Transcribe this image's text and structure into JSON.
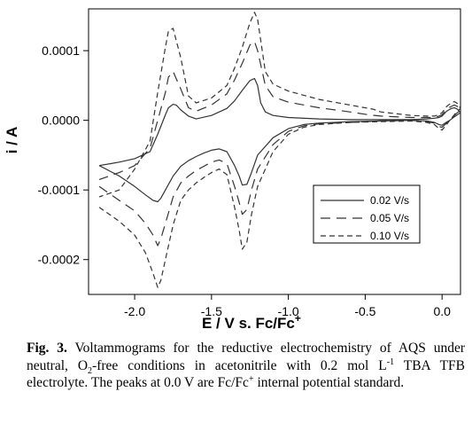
{
  "chart_data": {
    "type": "line",
    "xlabel": "E / V s. Fc/Fc",
    "xlabel_sup": "+",
    "ylabel": "i / A",
    "xlim": [
      -2.3,
      0.12
    ],
    "ylim": [
      -0.00025,
      0.00016
    ],
    "x_ticks": [
      {
        "value": -2.0,
        "label": "-2.0"
      },
      {
        "value": -1.5,
        "label": "-1.5"
      },
      {
        "value": -1.0,
        "label": "-1.0"
      },
      {
        "value": -0.5,
        "label": "-0.5"
      },
      {
        "value": 0.0,
        "label": "0.0"
      }
    ],
    "y_ticks": [
      {
        "value": 0.0001,
        "label": "0.0001"
      },
      {
        "value": 0.0,
        "label": "0.0000"
      },
      {
        "value": -0.0001,
        "label": "-0.0001"
      },
      {
        "value": -0.0002,
        "label": "-0.0002"
      }
    ],
    "legend_position": "lower-right",
    "series": [
      {
        "name": "0.02 V/s",
        "dash": "",
        "width": 1.2,
        "x": [
          -2.23,
          -2.1,
          -2.0,
          -1.93,
          -1.88,
          -1.85,
          -1.83,
          -1.8,
          -1.75,
          -1.7,
          -1.65,
          -1.6,
          -1.55,
          -1.5,
          -1.45,
          -1.4,
          -1.35,
          -1.32,
          -1.3,
          -1.27,
          -1.24,
          -1.2,
          -1.1,
          -1.0,
          -0.9,
          -0.8,
          -0.6,
          -0.4,
          -0.2,
          -0.1,
          -0.05,
          -0.02,
          0.0,
          0.02,
          0.05,
          0.08,
          0.1,
          0.12,
          0.1,
          0.08,
          0.06,
          0.03,
          0.0,
          -0.02,
          -0.05,
          -0.1,
          -0.2,
          -0.4,
          -0.6,
          -0.8,
          -1.0,
          -1.1,
          -1.15,
          -1.18,
          -1.2,
          -1.22,
          -1.25,
          -1.3,
          -1.35,
          -1.4,
          -1.5,
          -1.6,
          -1.65,
          -1.7,
          -1.73,
          -1.75,
          -1.78,
          -1.8,
          -1.85,
          -1.9,
          -2.0,
          -2.1,
          -2.23
        ],
        "y": [
          -6.5e-05,
          -8e-05,
          -9.5e-05,
          -0.000107,
          -0.000115,
          -0.000117,
          -0.000112,
          -0.0001,
          -8e-05,
          -6.6e-05,
          -5.8e-05,
          -5.2e-05,
          -4.7e-05,
          -4.3e-05,
          -4.1e-05,
          -4.5e-05,
          -6.5e-05,
          -8e-05,
          -9.3e-05,
          -9.2e-05,
          -7.5e-05,
          -5e-05,
          -2.5e-05,
          -1.2e-05,
          -6e-06,
          -4e-06,
          -2e-06,
          -1e-06,
          0.0,
          -1e-06,
          -3e-06,
          -6e-06,
          -7e-06,
          -4e-06,
          0.0,
          5e-06,
          8e-06,
          1.1e-05,
          1.6e-05,
          1.8e-05,
          1.7e-05,
          1.3e-05,
          6e-06,
          4e-06,
          3e-06,
          2e-06,
          1e-06,
          1e-06,
          1e-06,
          2e-06,
          4e-06,
          7e-06,
          1.2e-05,
          2.5e-05,
          5e-05,
          6e-05,
          5.7e-05,
          4.3e-05,
          2.8e-05,
          1.7e-05,
          7e-06,
          2e-06,
          6e-06,
          1.5e-05,
          2.2e-05,
          2.3e-05,
          1.8e-05,
          8e-06,
          -2e-05,
          -4.5e-05,
          -5.5e-05,
          -6e-05,
          -6.5e-05
        ]
      },
      {
        "name": "0.05 V/s",
        "dash": "11,7",
        "width": 1.2,
        "x": [
          -2.23,
          -2.1,
          -2.0,
          -1.93,
          -1.88,
          -1.85,
          -1.83,
          -1.8,
          -1.75,
          -1.7,
          -1.65,
          -1.6,
          -1.55,
          -1.5,
          -1.45,
          -1.4,
          -1.35,
          -1.32,
          -1.3,
          -1.27,
          -1.24,
          -1.2,
          -1.1,
          -1.0,
          -0.9,
          -0.8,
          -0.6,
          -0.4,
          -0.2,
          -0.1,
          -0.05,
          -0.02,
          0.0,
          0.02,
          0.05,
          0.08,
          0.1,
          0.12,
          0.1,
          0.08,
          0.06,
          0.03,
          0.0,
          -0.02,
          -0.05,
          -0.1,
          -0.2,
          -0.4,
          -0.48,
          -0.6,
          -0.8,
          -1.0,
          -1.1,
          -1.15,
          -1.18,
          -1.2,
          -1.22,
          -1.25,
          -1.3,
          -1.35,
          -1.4,
          -1.5,
          -1.6,
          -1.65,
          -1.7,
          -1.73,
          -1.75,
          -1.78,
          -1.8,
          -1.85,
          -1.9,
          -2.0,
          -2.1,
          -2.23
        ],
        "y": [
          -9.5e-05,
          -0.000115,
          -0.00013,
          -0.000148,
          -0.000165,
          -0.00018,
          -0.00017,
          -0.000148,
          -0.00011,
          -9e-05,
          -8e-05,
          -7.2e-05,
          -6.6e-05,
          -6e-05,
          -5.7e-05,
          -6.2e-05,
          -9.5e-05,
          -0.000118,
          -0.000135,
          -0.000128,
          -0.0001,
          -7e-05,
          -3.5e-05,
          -1.6e-05,
          -8e-06,
          -5e-06,
          -3e-06,
          -1e-06,
          0.0,
          -2e-06,
          -4e-06,
          -9e-06,
          -1e-05,
          -6e-06,
          0.0,
          7e-06,
          1.1e-05,
          1.4e-05,
          2e-05,
          2.2e-05,
          2e-05,
          1.6e-05,
          8e-06,
          6e-06,
          4e-06,
          4e-06,
          4e-06,
          6e-06,
          8e-06,
          1.2e-05,
          1.8e-05,
          2.6e-05,
          3.4e-05,
          5e-05,
          8e-05,
          0.0001,
          0.000113,
          0.000108,
          8.2e-05,
          5.8e-05,
          3.8e-05,
          2.2e-05,
          1.3e-05,
          1.8e-05,
          4.5e-05,
          6e-05,
          7e-05,
          6.2e-05,
          4e-05,
          0.0,
          -4e-05,
          -6.5e-05,
          -7.5e-05,
          -8.5e-05
        ]
      },
      {
        "name": "0.10 V/s",
        "dash": "6,4",
        "width": 1.2,
        "x": [
          -2.23,
          -2.1,
          -2.0,
          -1.93,
          -1.88,
          -1.85,
          -1.83,
          -1.8,
          -1.75,
          -1.7,
          -1.65,
          -1.6,
          -1.55,
          -1.5,
          -1.45,
          -1.4,
          -1.35,
          -1.32,
          -1.3,
          -1.27,
          -1.24,
          -1.2,
          -1.1,
          -1.0,
          -0.9,
          -0.8,
          -0.6,
          -0.4,
          -0.2,
          -0.1,
          -0.05,
          -0.02,
          0.0,
          0.02,
          0.05,
          0.08,
          0.1,
          0.12,
          0.1,
          0.08,
          0.06,
          0.03,
          0.0,
          -0.02,
          -0.05,
          -0.1,
          -0.2,
          -0.4,
          -0.45,
          -0.6,
          -0.8,
          -1.0,
          -1.1,
          -1.15,
          -1.18,
          -1.2,
          -1.22,
          -1.25,
          -1.3,
          -1.35,
          -1.4,
          -1.5,
          -1.6,
          -1.65,
          -1.7,
          -1.73,
          -1.75,
          -1.78,
          -1.8,
          -1.85,
          -1.9,
          -2.0,
          -2.1,
          -2.23
        ],
        "y": [
          -0.000125,
          -0.000145,
          -0.000165,
          -0.00019,
          -0.00022,
          -0.00024,
          -0.00023,
          -0.0002,
          -0.00015,
          -0.000115,
          -0.0001,
          -9e-05,
          -8.2e-05,
          -7.5e-05,
          -7e-05,
          -7.8e-05,
          -0.000125,
          -0.000158,
          -0.000185,
          -0.000175,
          -0.000135,
          -9.5e-05,
          -4.5e-05,
          -2e-05,
          -1e-05,
          -6e-06,
          -3e-06,
          -2e-06,
          -1e-06,
          -3e-06,
          -6e-06,
          -1.2e-05,
          -1.4e-05,
          -9e-06,
          0.0,
          8e-06,
          1.3e-05,
          1.7e-05,
          2.4e-05,
          2.7e-05,
          2.5e-05,
          2e-05,
          1.1e-05,
          8e-06,
          6e-06,
          6e-06,
          7e-06,
          1.2e-05,
          1.6e-05,
          2.2e-05,
          3e-05,
          4.2e-05,
          5.2e-05,
          7e-05,
          0.000115,
          0.000145,
          0.000155,
          0.00014,
          0.000105,
          7.5e-05,
          5e-05,
          3.2e-05,
          2.5e-05,
          3.5e-05,
          9e-05,
          0.000115,
          0.000132,
          0.000128,
          0.000105,
          4e-05,
          -3e-05,
          -7e-05,
          -0.0001,
          -0.00011
        ]
      }
    ]
  },
  "caption": {
    "fig_label": "Fig. 3.",
    "t1": " Voltammograms for the reductive electrochemistry of AQS under neutral, O",
    "sub2": "2",
    "t2": "-free conditions in acetonitrile with 0.2 mol L",
    "sup1": "-1",
    "t3": " TBA TFB electrolyte. The peaks at 0.0 V are Fc/Fc",
    "sup2": "+",
    "t4": " internal potential standard."
  }
}
